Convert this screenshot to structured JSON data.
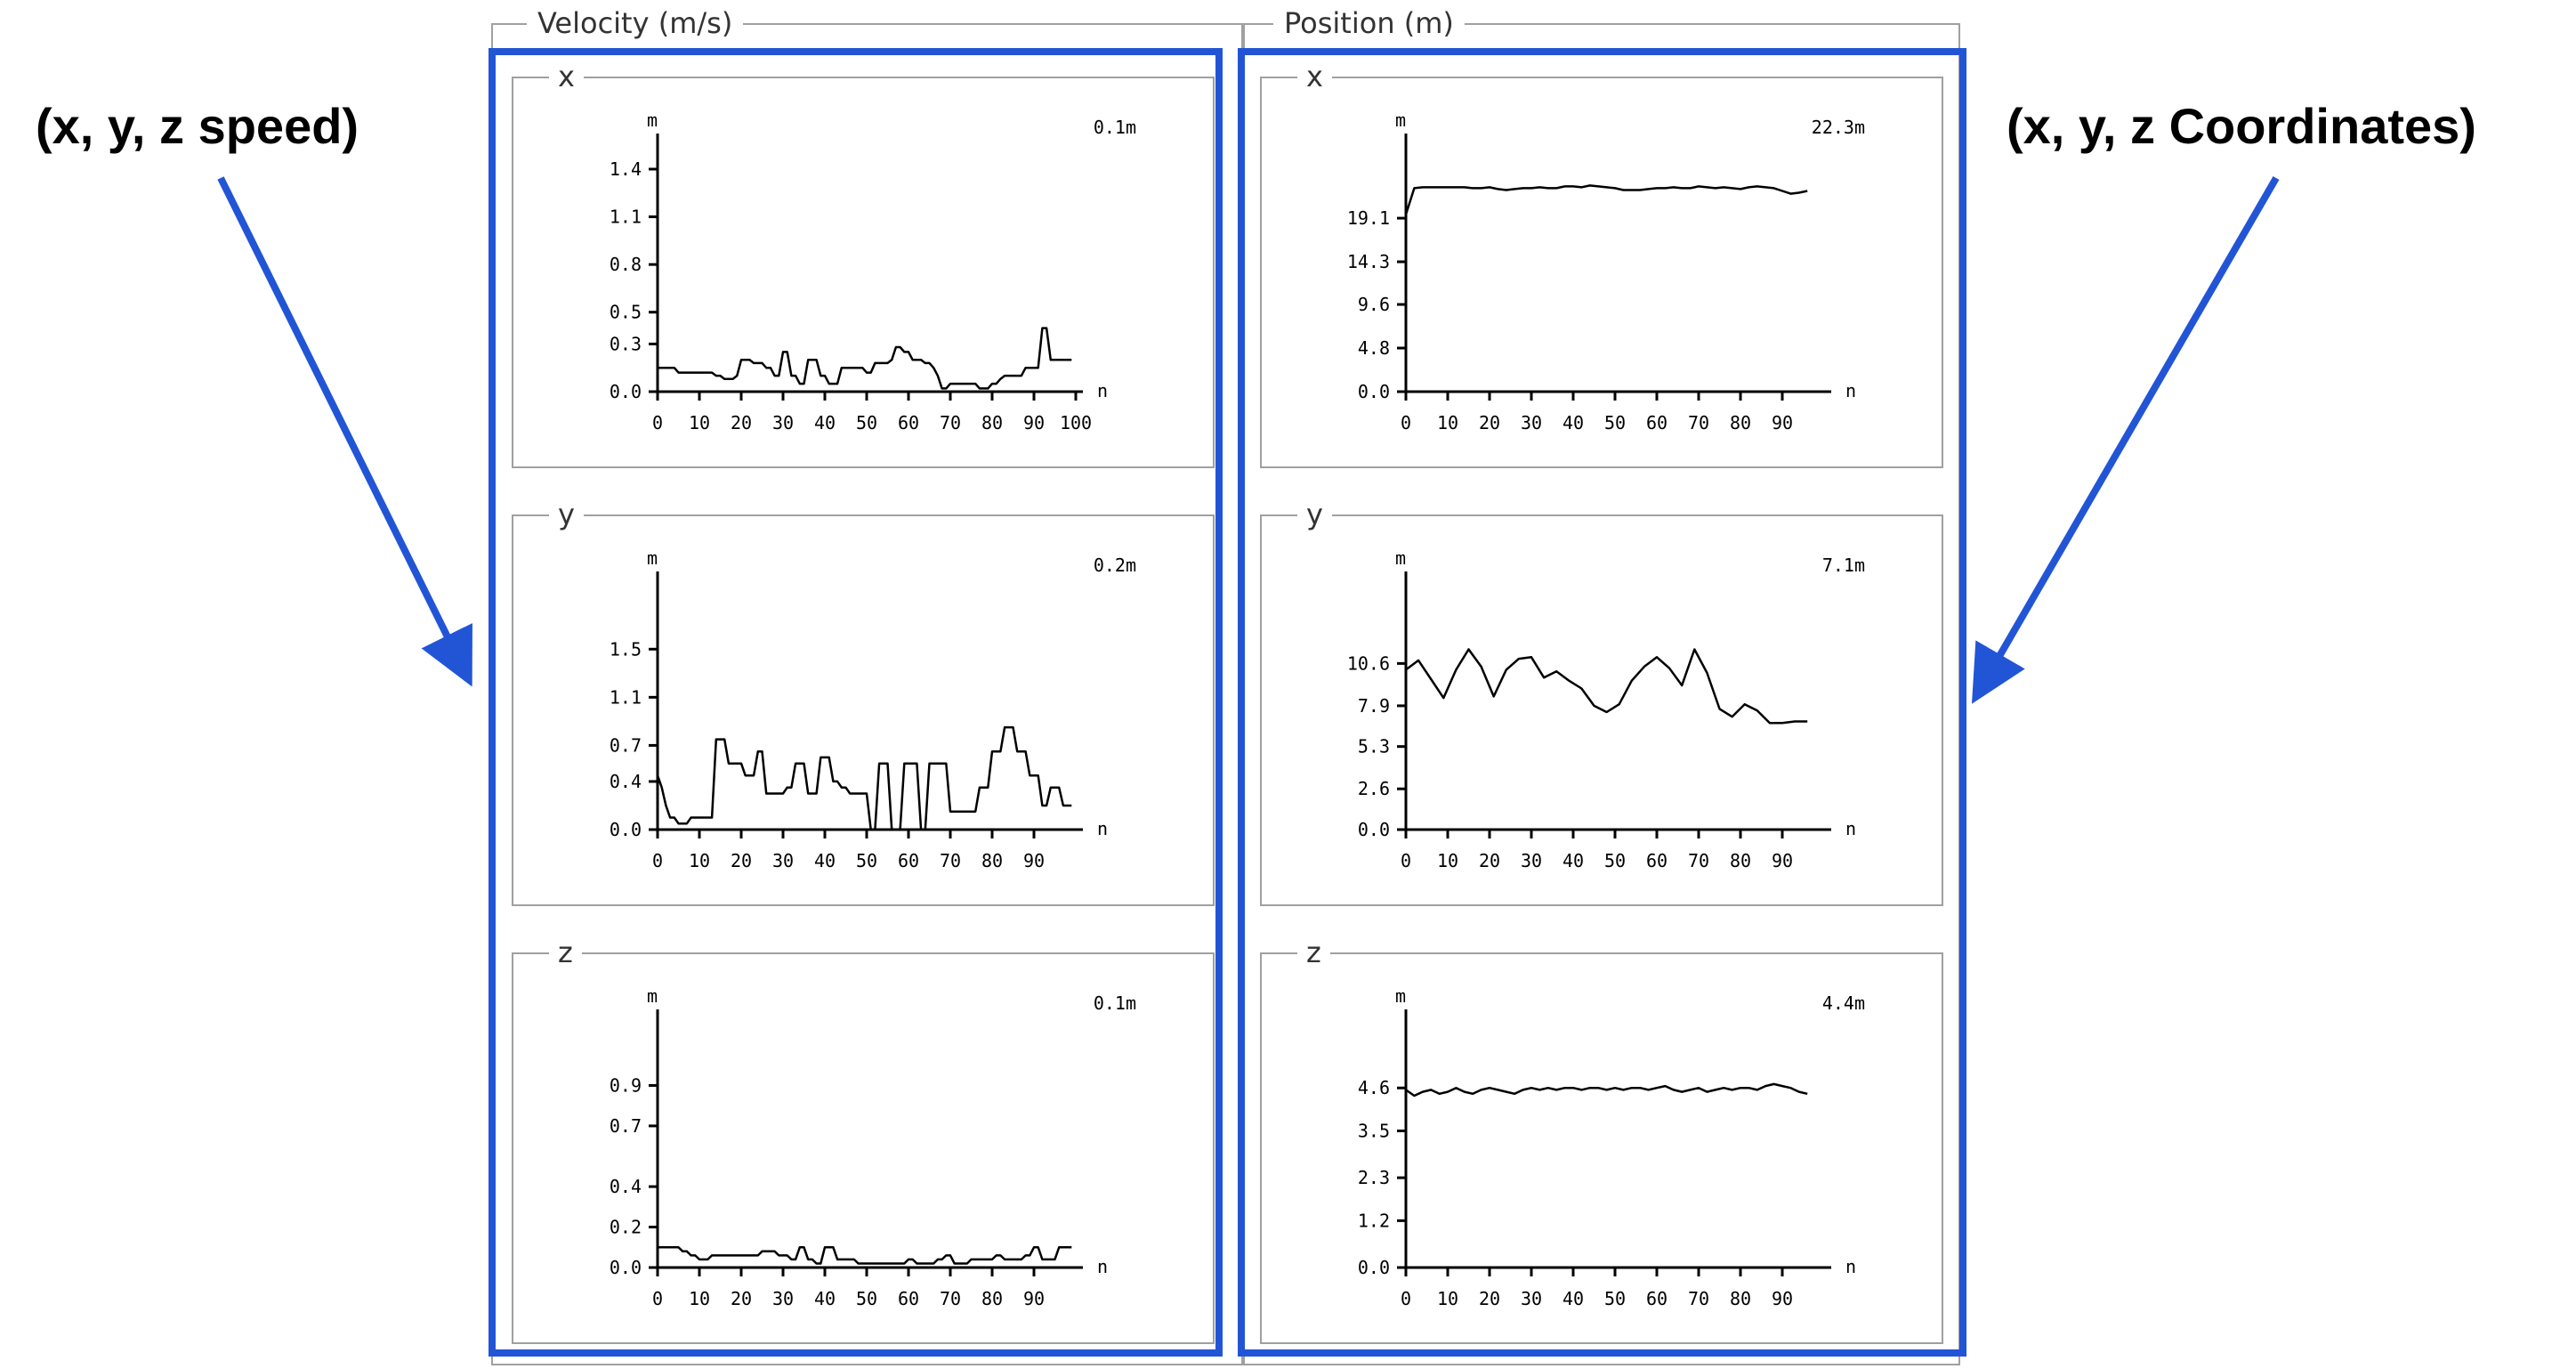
{
  "annotations": {
    "left_label": "(x, y, z speed)",
    "right_label": "(x, y, z Coordinates)",
    "highlight_color": "#2255d6"
  },
  "groups": {
    "velocity": {
      "title": "Velocity (m/s)"
    },
    "position": {
      "title": "Position (m)"
    }
  },
  "chart_data": [
    {
      "id": "vel_x",
      "type": "line",
      "panel_label": "x",
      "ylabel": "m",
      "xlabel": "n",
      "readout": "0.1m",
      "yticks": [
        0.0,
        0.3,
        0.5,
        0.8,
        1.1,
        1.4
      ],
      "ylim": [
        0,
        1.4
      ],
      "xticks": [
        0,
        10,
        20,
        30,
        40,
        50,
        60,
        70,
        80,
        90,
        100
      ],
      "xlim": [
        0,
        100
      ],
      "x": [
        0,
        1,
        2,
        3,
        4,
        5,
        6,
        7,
        8,
        9,
        10,
        11,
        12,
        13,
        14,
        15,
        16,
        17,
        18,
        19,
        20,
        21,
        22,
        23,
        24,
        25,
        26,
        27,
        28,
        29,
        30,
        31,
        32,
        33,
        34,
        35,
        36,
        37,
        38,
        39,
        40,
        41,
        42,
        43,
        44,
        45,
        46,
        47,
        48,
        49,
        50,
        51,
        52,
        53,
        54,
        55,
        56,
        57,
        58,
        59,
        60,
        61,
        62,
        63,
        64,
        65,
        66,
        67,
        68,
        69,
        70,
        71,
        72,
        73,
        74,
        75,
        76,
        77,
        78,
        79,
        80,
        81,
        82,
        83,
        84,
        85,
        86,
        87,
        88,
        89,
        90,
        91,
        92,
        93,
        94,
        95,
        96,
        97,
        98,
        99
      ],
      "y": [
        0.15,
        0.15,
        0.15,
        0.15,
        0.15,
        0.12,
        0.12,
        0.12,
        0.12,
        0.12,
        0.12,
        0.12,
        0.12,
        0.12,
        0.1,
        0.1,
        0.08,
        0.08,
        0.08,
        0.1,
        0.2,
        0.2,
        0.2,
        0.18,
        0.18,
        0.18,
        0.15,
        0.15,
        0.1,
        0.1,
        0.25,
        0.25,
        0.1,
        0.1,
        0.05,
        0.05,
        0.2,
        0.2,
        0.2,
        0.1,
        0.1,
        0.05,
        0.05,
        0.05,
        0.15,
        0.15,
        0.15,
        0.15,
        0.15,
        0.15,
        0.12,
        0.12,
        0.18,
        0.18,
        0.18,
        0.18,
        0.2,
        0.28,
        0.28,
        0.25,
        0.25,
        0.2,
        0.2,
        0.2,
        0.18,
        0.18,
        0.15,
        0.1,
        0.02,
        0.02,
        0.05,
        0.05,
        0.05,
        0.05,
        0.05,
        0.05,
        0.05,
        0.02,
        0.02,
        0.02,
        0.05,
        0.05,
        0.08,
        0.1,
        0.1,
        0.1,
        0.1,
        0.1,
        0.15,
        0.15,
        0.15,
        0.15,
        0.4,
        0.4,
        0.2,
        0.2,
        0.2,
        0.2,
        0.2,
        0.2
      ]
    },
    {
      "id": "vel_y",
      "type": "line",
      "panel_label": "y",
      "ylabel": "m",
      "xlabel": "n",
      "readout": "0.2m",
      "yticks": [
        0.0,
        0.4,
        0.7,
        1.1,
        1.5
      ],
      "ylim": [
        0,
        1.85
      ],
      "xticks": [
        0,
        10,
        20,
        30,
        40,
        50,
        60,
        70,
        80,
        90
      ],
      "xlim": [
        0,
        100
      ],
      "x": [
        0,
        1,
        2,
        3,
        4,
        5,
        6,
        7,
        8,
        9,
        10,
        11,
        12,
        13,
        14,
        15,
        16,
        17,
        18,
        19,
        20,
        21,
        22,
        23,
        24,
        25,
        26,
        27,
        28,
        29,
        30,
        31,
        32,
        33,
        34,
        35,
        36,
        37,
        38,
        39,
        40,
        41,
        42,
        43,
        44,
        45,
        46,
        47,
        48,
        49,
        50,
        51,
        52,
        53,
        54,
        55,
        56,
        57,
        58,
        59,
        60,
        61,
        62,
        63,
        64,
        65,
        66,
        67,
        68,
        69,
        70,
        71,
        72,
        73,
        74,
        75,
        76,
        77,
        78,
        79,
        80,
        81,
        82,
        83,
        84,
        85,
        86,
        87,
        88,
        89,
        90,
        91,
        92,
        93,
        94,
        95,
        96,
        97,
        98,
        99
      ],
      "y": [
        0.45,
        0.35,
        0.2,
        0.1,
        0.1,
        0.05,
        0.05,
        0.05,
        0.1,
        0.1,
        0.1,
        0.1,
        0.1,
        0.1,
        0.75,
        0.75,
        0.75,
        0.55,
        0.55,
        0.55,
        0.55,
        0.45,
        0.45,
        0.45,
        0.65,
        0.65,
        0.3,
        0.3,
        0.3,
        0.3,
        0.3,
        0.35,
        0.35,
        0.55,
        0.55,
        0.55,
        0.3,
        0.3,
        0.3,
        0.6,
        0.6,
        0.6,
        0.4,
        0.4,
        0.35,
        0.35,
        0.3,
        0.3,
        0.3,
        0.3,
        0.3,
        0.0,
        0.0,
        0.55,
        0.55,
        0.55,
        0.0,
        0.0,
        0.0,
        0.55,
        0.55,
        0.55,
        0.55,
        0.0,
        0.0,
        0.55,
        0.55,
        0.55,
        0.55,
        0.55,
        0.15,
        0.15,
        0.15,
        0.15,
        0.15,
        0.15,
        0.15,
        0.35,
        0.35,
        0.35,
        0.65,
        0.65,
        0.65,
        0.85,
        0.85,
        0.85,
        0.65,
        0.65,
        0.65,
        0.45,
        0.45,
        0.45,
        0.2,
        0.2,
        0.35,
        0.35,
        0.35,
        0.2,
        0.2,
        0.2
      ]
    },
    {
      "id": "vel_z",
      "type": "line",
      "panel_label": "z",
      "ylabel": "m",
      "xlabel": "n",
      "readout": "0.1m",
      "yticks": [
        0.0,
        0.2,
        0.4,
        0.7,
        0.9
      ],
      "ylim": [
        0,
        1.1
      ],
      "xticks": [
        0,
        10,
        20,
        30,
        40,
        50,
        60,
        70,
        80,
        90
      ],
      "xlim": [
        0,
        100
      ],
      "x": [
        0,
        1,
        2,
        3,
        4,
        5,
        6,
        7,
        8,
        9,
        10,
        11,
        12,
        13,
        14,
        15,
        16,
        17,
        18,
        19,
        20,
        21,
        22,
        23,
        24,
        25,
        26,
        27,
        28,
        29,
        30,
        31,
        32,
        33,
        34,
        35,
        36,
        37,
        38,
        39,
        40,
        41,
        42,
        43,
        44,
        45,
        46,
        47,
        48,
        49,
        50,
        51,
        52,
        53,
        54,
        55,
        56,
        57,
        58,
        59,
        60,
        61,
        62,
        63,
        64,
        65,
        66,
        67,
        68,
        69,
        70,
        71,
        72,
        73,
        74,
        75,
        76,
        77,
        78,
        79,
        80,
        81,
        82,
        83,
        84,
        85,
        86,
        87,
        88,
        89,
        90,
        91,
        92,
        93,
        94,
        95,
        96,
        97,
        98,
        99
      ],
      "y": [
        0.1,
        0.1,
        0.1,
        0.1,
        0.1,
        0.1,
        0.08,
        0.08,
        0.06,
        0.06,
        0.04,
        0.04,
        0.04,
        0.06,
        0.06,
        0.06,
        0.06,
        0.06,
        0.06,
        0.06,
        0.06,
        0.06,
        0.06,
        0.06,
        0.06,
        0.08,
        0.08,
        0.08,
        0.08,
        0.06,
        0.06,
        0.06,
        0.04,
        0.04,
        0.1,
        0.1,
        0.04,
        0.04,
        0.02,
        0.02,
        0.1,
        0.1,
        0.1,
        0.04,
        0.04,
        0.04,
        0.04,
        0.04,
        0.02,
        0.02,
        0.02,
        0.02,
        0.02,
        0.02,
        0.02,
        0.02,
        0.02,
        0.02,
        0.02,
        0.02,
        0.04,
        0.04,
        0.02,
        0.02,
        0.02,
        0.02,
        0.02,
        0.04,
        0.04,
        0.06,
        0.06,
        0.02,
        0.02,
        0.02,
        0.02,
        0.04,
        0.04,
        0.04,
        0.04,
        0.04,
        0.04,
        0.06,
        0.06,
        0.04,
        0.04,
        0.04,
        0.04,
        0.04,
        0.06,
        0.06,
        0.1,
        0.1,
        0.04,
        0.04,
        0.04,
        0.04,
        0.1,
        0.1,
        0.1,
        0.1
      ]
    },
    {
      "id": "pos_x",
      "type": "line",
      "panel_label": "x",
      "ylabel": "m",
      "xlabel": "n",
      "readout": "22.3m",
      "yticks": [
        0.0,
        4.8,
        9.6,
        14.3,
        19.1
      ],
      "ylim": [
        0,
        24.5
      ],
      "xticks": [
        0,
        10,
        20,
        30,
        40,
        50,
        60,
        70,
        80,
        90
      ],
      "xlim": [
        0,
        100
      ],
      "x": [
        0,
        2,
        4,
        6,
        8,
        10,
        12,
        14,
        16,
        18,
        20,
        22,
        24,
        26,
        28,
        30,
        32,
        34,
        36,
        38,
        40,
        42,
        44,
        46,
        48,
        50,
        52,
        54,
        56,
        58,
        60,
        62,
        64,
        66,
        68,
        70,
        72,
        74,
        76,
        78,
        80,
        82,
        84,
        86,
        88,
        90,
        92,
        94,
        96
      ],
      "y": [
        19.5,
        22.4,
        22.5,
        22.5,
        22.5,
        22.5,
        22.5,
        22.5,
        22.4,
        22.4,
        22.5,
        22.3,
        22.2,
        22.3,
        22.4,
        22.4,
        22.5,
        22.4,
        22.4,
        22.6,
        22.6,
        22.5,
        22.7,
        22.6,
        22.5,
        22.4,
        22.2,
        22.2,
        22.2,
        22.3,
        22.4,
        22.4,
        22.5,
        22.4,
        22.4,
        22.6,
        22.5,
        22.4,
        22.5,
        22.4,
        22.3,
        22.5,
        22.6,
        22.5,
        22.4,
        22.1,
        21.8,
        21.9,
        22.1
      ]
    },
    {
      "id": "pos_y",
      "type": "line",
      "panel_label": "y",
      "ylabel": "m",
      "xlabel": "n",
      "readout": "7.1m",
      "yticks": [
        0.0,
        2.6,
        5.3,
        7.9,
        10.6
      ],
      "ylim": [
        0,
        14.2
      ],
      "xticks": [
        0,
        10,
        20,
        30,
        40,
        50,
        60,
        70,
        80,
        90
      ],
      "xlim": [
        0,
        100
      ],
      "x": [
        0,
        3,
        6,
        9,
        12,
        15,
        18,
        21,
        24,
        27,
        30,
        33,
        36,
        39,
        42,
        45,
        48,
        51,
        54,
        57,
        60,
        63,
        66,
        69,
        72,
        75,
        78,
        81,
        84,
        87,
        90,
        93,
        96
      ],
      "y": [
        10.2,
        10.8,
        9.6,
        8.4,
        10.2,
        11.5,
        10.4,
        8.5,
        10.2,
        10.9,
        11.0,
        9.7,
        10.1,
        9.5,
        9.0,
        7.9,
        7.5,
        8.0,
        9.5,
        10.4,
        11.0,
        10.3,
        9.2,
        11.5,
        10.0,
        7.7,
        7.2,
        8.0,
        7.6,
        6.8,
        6.8,
        6.9,
        6.9
      ]
    },
    {
      "id": "pos_z",
      "type": "line",
      "panel_label": "z",
      "ylabel": "m",
      "xlabel": "n",
      "readout": "4.4m",
      "yticks": [
        0.0,
        1.2,
        2.3,
        3.5,
        4.6
      ],
      "ylim": [
        0,
        5.7
      ],
      "xticks": [
        0,
        10,
        20,
        30,
        40,
        50,
        60,
        70,
        80,
        90
      ],
      "xlim": [
        0,
        100
      ],
      "x": [
        0,
        2,
        4,
        6,
        8,
        10,
        12,
        14,
        16,
        18,
        20,
        22,
        24,
        26,
        28,
        30,
        32,
        34,
        36,
        38,
        40,
        42,
        44,
        46,
        48,
        50,
        52,
        54,
        56,
        58,
        60,
        62,
        64,
        66,
        68,
        70,
        72,
        74,
        76,
        78,
        80,
        82,
        84,
        86,
        88,
        90,
        92,
        94,
        96
      ],
      "y": [
        4.55,
        4.4,
        4.5,
        4.55,
        4.45,
        4.5,
        4.6,
        4.5,
        4.45,
        4.55,
        4.6,
        4.55,
        4.5,
        4.45,
        4.55,
        4.6,
        4.55,
        4.6,
        4.55,
        4.6,
        4.6,
        4.55,
        4.6,
        4.6,
        4.55,
        4.6,
        4.55,
        4.6,
        4.6,
        4.55,
        4.6,
        4.65,
        4.55,
        4.5,
        4.55,
        4.6,
        4.5,
        4.55,
        4.6,
        4.55,
        4.6,
        4.6,
        4.55,
        4.65,
        4.7,
        4.65,
        4.6,
        4.5,
        4.45
      ]
    }
  ]
}
